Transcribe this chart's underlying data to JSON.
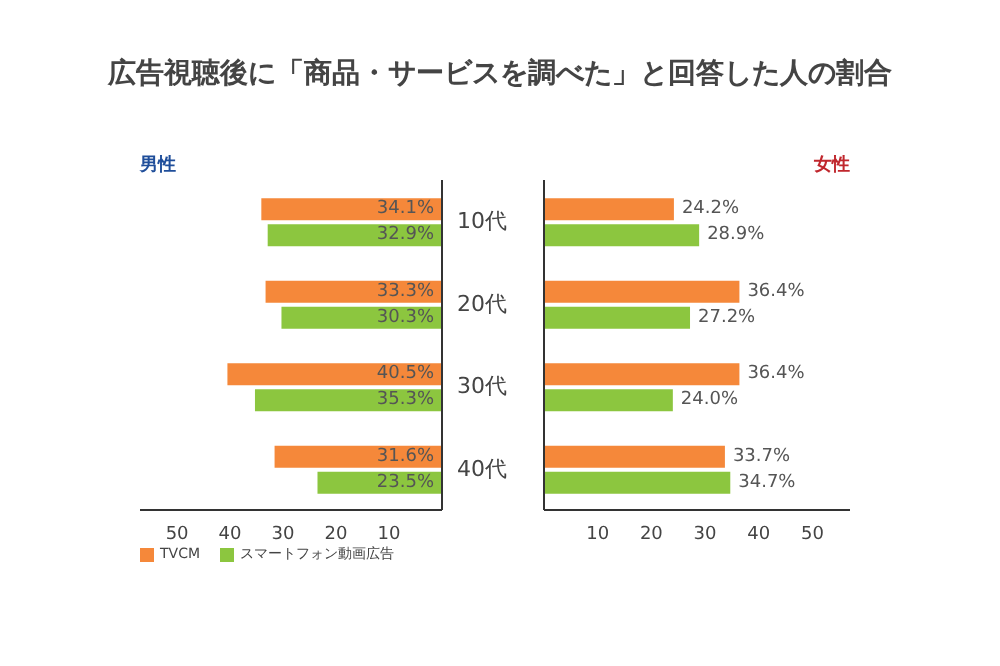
{
  "chart_data": [
    {
      "type": "bar",
      "title": "広告視聴後に「商品・サービスを調べた」と回答した人の割合",
      "subtitle": "男性",
      "orientation": "horizontal",
      "categories": [
        null,
        null,
        null,
        null
      ],
      "series": [
        {
          "name": "TVCM",
          "color": "#f5883a",
          "values": [
            34.1,
            33.3,
            40.5,
            31.6
          ],
          "value_labels": [
            "34.1%",
            "33.3%",
            "40.5%",
            "31.6%"
          ]
        },
        {
          "name": "スマートフォン動画広告",
          "color": "#8cc63f",
          "values": [
            32.9,
            30.3,
            35.3,
            23.5
          ],
          "value_labels": [
            "32.9%",
            "30.3%",
            "35.3%",
            "23.5%"
          ]
        }
      ],
      "xlim": [
        57,
        0
      ],
      "xticks": [
        50,
        40,
        30,
        20,
        10
      ],
      "tick_labels": "x",
      "legend": "bottom left"
    },
    {
      "type": "bar",
      "subtitle": "女性",
      "orientation": "horizontal",
      "categories": [
        "10代",
        "20代",
        "30代",
        "40代"
      ],
      "series": [
        {
          "color": "#f5883a",
          "values": [
            24.2,
            36.4,
            36.4,
            33.7
          ],
          "value_labels": [
            "24.2%",
            "36.4%",
            "36.4%",
            "33.7%"
          ]
        },
        {
          "color": "#8cc63f",
          "values": [
            28.9,
            27.2,
            24.0,
            34.7
          ],
          "value_labels": [
            "28.9%",
            "27.2%",
            "24.0%",
            "34.7%"
          ]
        }
      ],
      "xlim": [
        0,
        57
      ],
      "xticks": [
        10,
        20,
        30,
        40,
        50
      ]
    }
  ]
}
